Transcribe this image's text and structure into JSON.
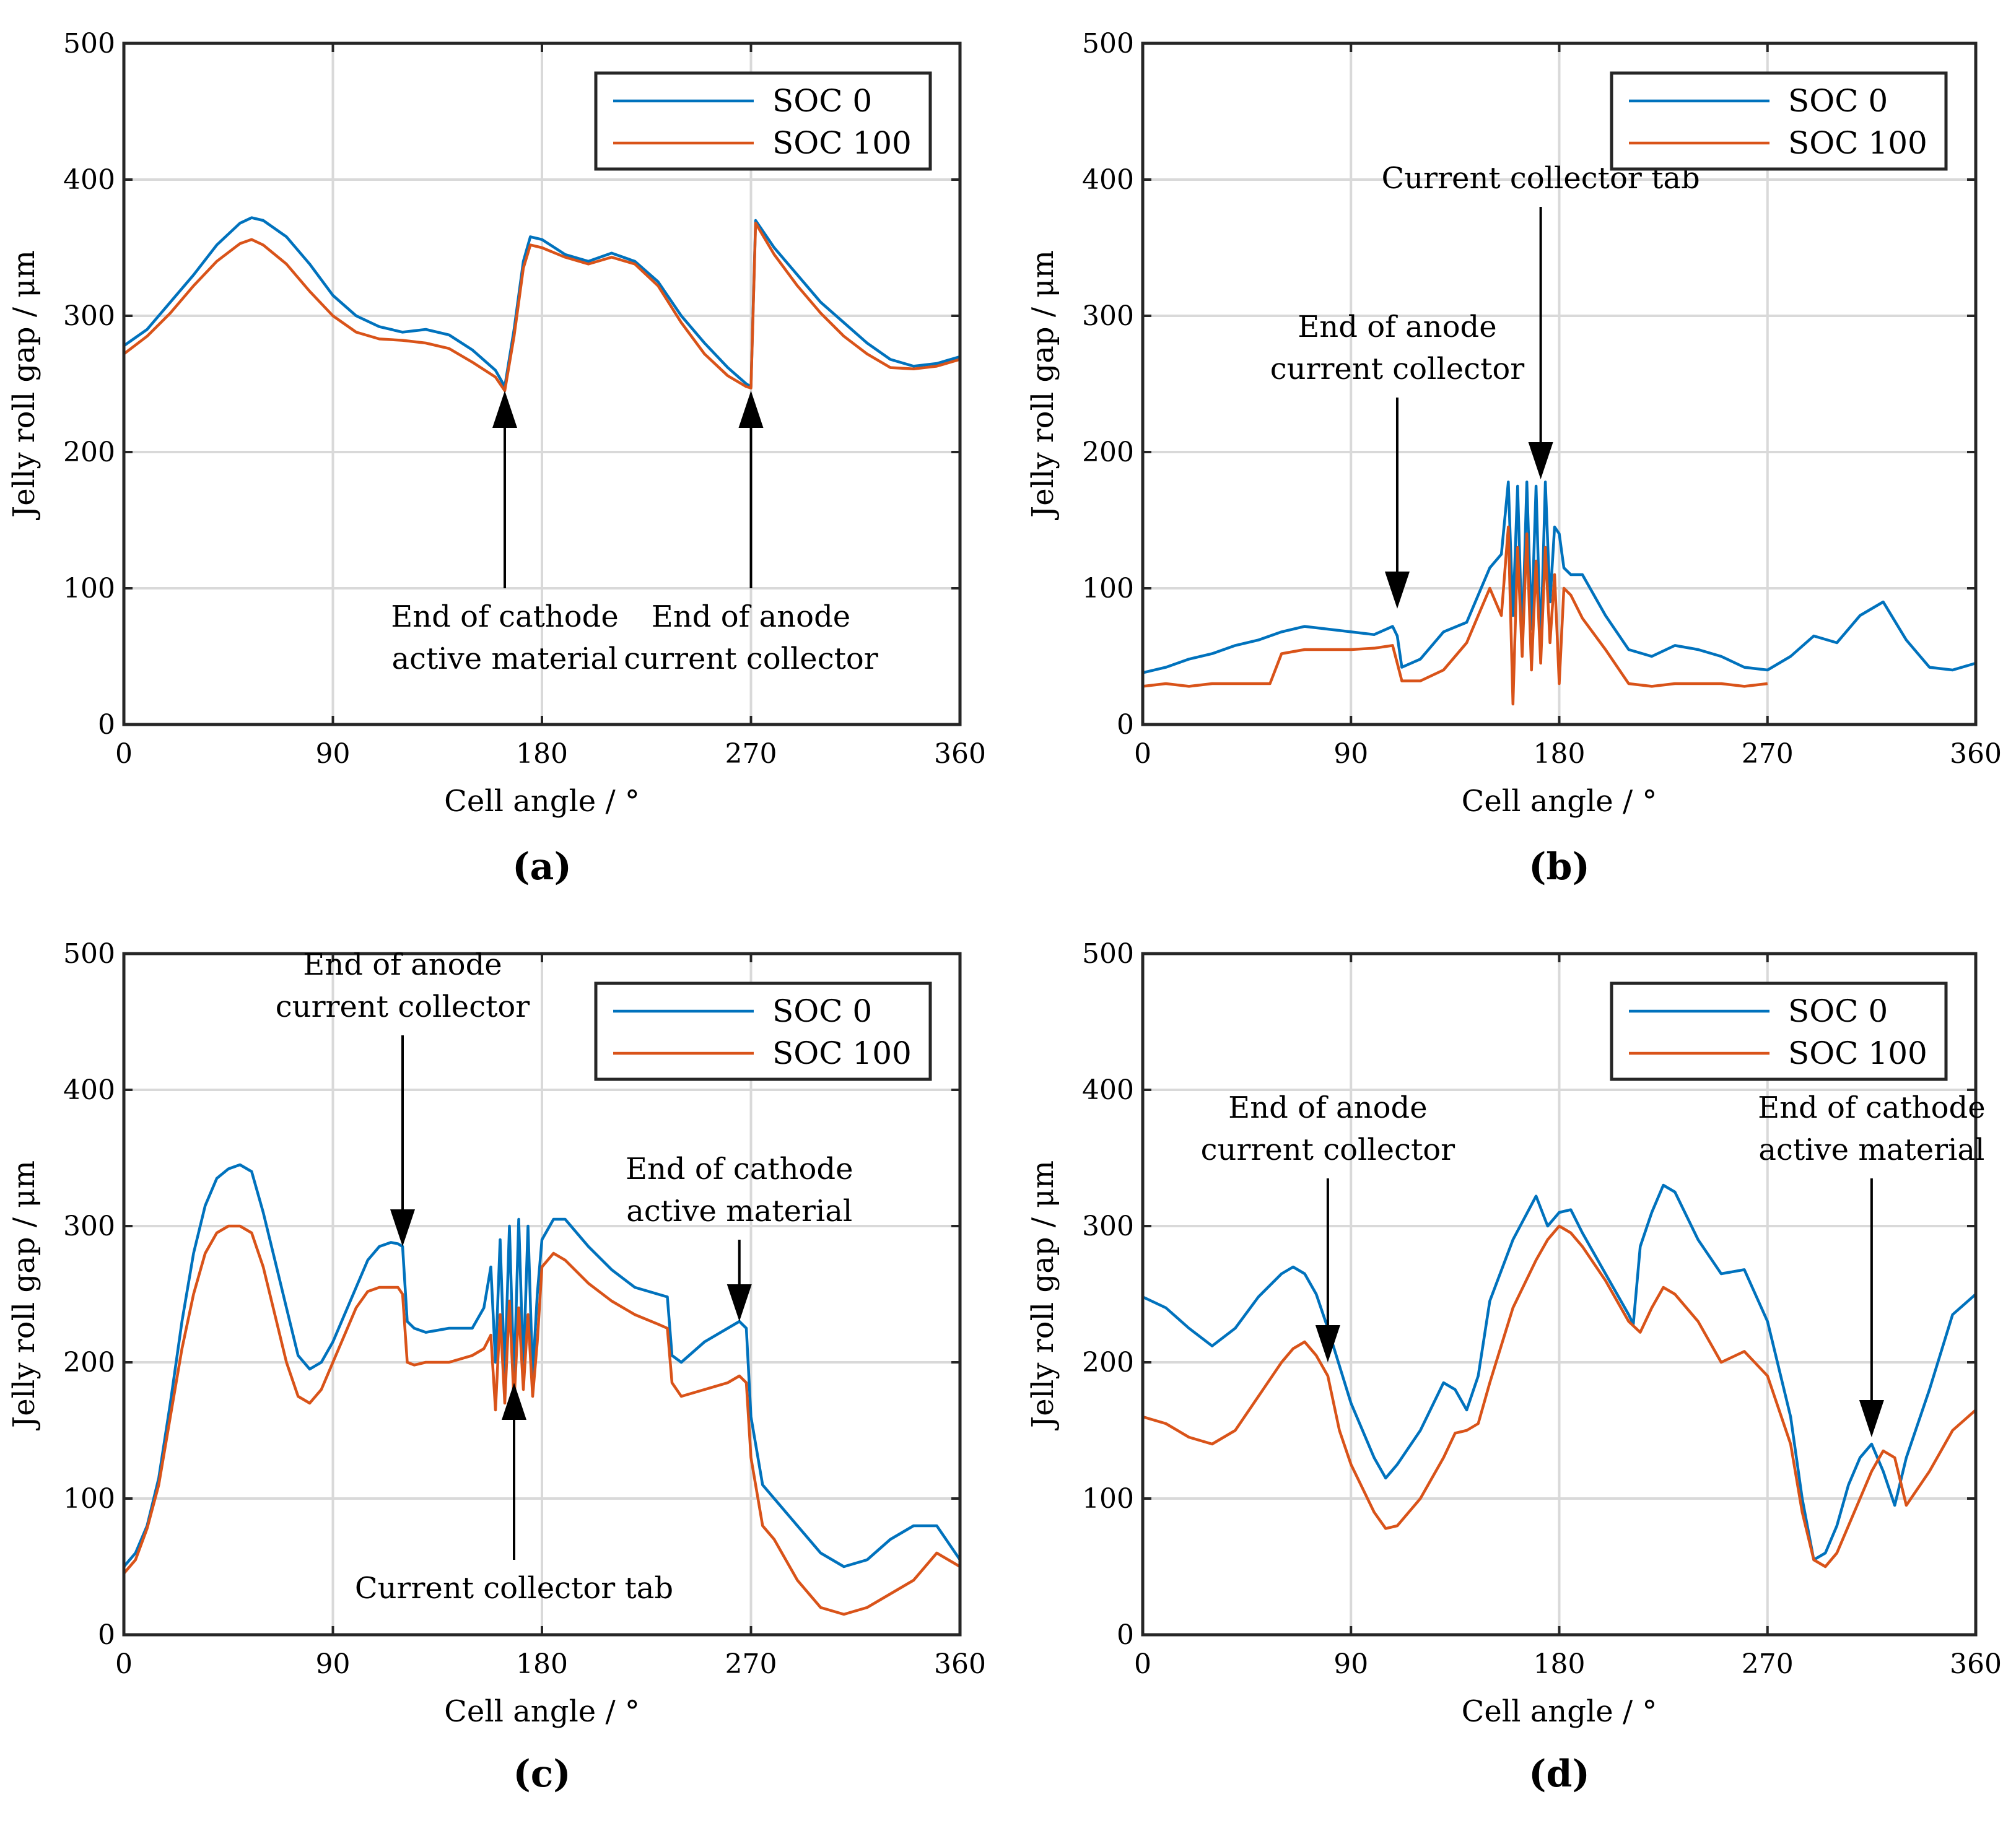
{
  "legend": {
    "series": [
      "SOC 0",
      "SOC 100"
    ]
  },
  "colors": {
    "soc0": "#0072BD",
    "soc100": "#D95319",
    "grid": "#d9d9d9",
    "axis": "#262626"
  },
  "chart_data": [
    {
      "type": "line",
      "panel_label": "(a)",
      "xlabel": "Cell angle / °",
      "ylabel": "Jelly roll gap / μm",
      "xlim": [
        0,
        360
      ],
      "ylim": [
        0,
        500
      ],
      "xticks": [
        0,
        90,
        180,
        270,
        360
      ],
      "yticks": [
        0,
        100,
        200,
        300,
        400,
        500
      ],
      "grid": true,
      "legend_position": "top-right",
      "series": [
        {
          "name": "SOC 0",
          "color": "#0072BD",
          "x": [
            0,
            10,
            20,
            30,
            40,
            50,
            55,
            60,
            70,
            80,
            90,
            100,
            110,
            120,
            130,
            140,
            150,
            160,
            164,
            168,
            172,
            175,
            180,
            190,
            200,
            210,
            220,
            230,
            240,
            250,
            260,
            268,
            270,
            272,
            280,
            290,
            300,
            310,
            320,
            330,
            340,
            350,
            360
          ],
          "y": [
            278,
            290,
            310,
            330,
            352,
            368,
            372,
            370,
            358,
            338,
            315,
            300,
            292,
            288,
            290,
            286,
            275,
            260,
            248,
            290,
            340,
            358,
            356,
            345,
            340,
            346,
            340,
            325,
            300,
            280,
            262,
            250,
            248,
            370,
            350,
            330,
            310,
            295,
            280,
            268,
            263,
            265,
            270
          ]
        },
        {
          "name": "SOC 100",
          "color": "#D95319",
          "x": [
            0,
            10,
            20,
            30,
            40,
            50,
            55,
            60,
            70,
            80,
            90,
            100,
            110,
            120,
            130,
            140,
            150,
            160,
            164,
            168,
            172,
            175,
            180,
            190,
            200,
            210,
            220,
            230,
            240,
            250,
            260,
            268,
            270,
            272,
            280,
            290,
            300,
            310,
            320,
            330,
            340,
            350,
            360
          ],
          "y": [
            272,
            285,
            302,
            322,
            340,
            353,
            356,
            352,
            338,
            318,
            300,
            288,
            283,
            282,
            280,
            276,
            266,
            255,
            245,
            285,
            335,
            352,
            350,
            343,
            338,
            343,
            338,
            322,
            295,
            272,
            256,
            248,
            247,
            368,
            345,
            322,
            302,
            285,
            272,
            262,
            261,
            263,
            268
          ]
        }
      ],
      "annotations": [
        {
          "lines": [
            "End of cathode",
            "active material"
          ],
          "x": 164,
          "y_tail": 100,
          "y_head": 245
        },
        {
          "lines": [
            "End of anode",
            "current collector"
          ],
          "x": 270,
          "y_tail": 100,
          "y_head": 245
        }
      ]
    },
    {
      "type": "line",
      "panel_label": "(b)",
      "xlabel": "Cell angle / °",
      "ylabel": "Jelly roll gap / μm",
      "xlim": [
        0,
        360
      ],
      "ylim": [
        0,
        500
      ],
      "xticks": [
        0,
        90,
        180,
        270,
        360
      ],
      "yticks": [
        0,
        100,
        200,
        300,
        400,
        500
      ],
      "grid": true,
      "legend_position": "top-right",
      "series": [
        {
          "name": "SOC 0",
          "color": "#0072BD",
          "x": [
            0,
            10,
            20,
            30,
            40,
            50,
            60,
            70,
            80,
            90,
            100,
            108,
            110,
            112,
            120,
            130,
            140,
            145,
            150,
            155,
            158,
            160,
            162,
            164,
            166,
            168,
            170,
            172,
            174,
            176,
            178,
            180,
            182,
            185,
            190,
            200,
            210,
            220,
            230,
            240,
            250,
            260,
            270,
            280,
            290,
            300,
            310,
            320,
            330,
            340,
            350,
            360
          ],
          "y": [
            38,
            42,
            48,
            52,
            58,
            62,
            68,
            72,
            70,
            68,
            66,
            72,
            65,
            42,
            48,
            68,
            75,
            95,
            115,
            125,
            178,
            80,
            175,
            60,
            178,
            70,
            175,
            55,
            178,
            90,
            145,
            140,
            115,
            110,
            110,
            80,
            55,
            50,
            58,
            55,
            50,
            42,
            40,
            50,
            65,
            60,
            80,
            90,
            62,
            42,
            40,
            45
          ]
        },
        {
          "name": "SOC 100",
          "color": "#D95319",
          "x": [
            0,
            10,
            20,
            30,
            40,
            50,
            55,
            60,
            70,
            80,
            90,
            100,
            108,
            110,
            112,
            120,
            130,
            140,
            145,
            150,
            155,
            158,
            160,
            162,
            164,
            166,
            168,
            170,
            172,
            174,
            176,
            178,
            180,
            182,
            185,
            190,
            200,
            210,
            220,
            230,
            240,
            250,
            260,
            270
          ],
          "y": [
            28,
            30,
            28,
            30,
            30,
            30,
            30,
            52,
            55,
            55,
            55,
            56,
            58,
            45,
            32,
            32,
            40,
            60,
            80,
            100,
            80,
            145,
            15,
            130,
            50,
            140,
            40,
            120,
            45,
            130,
            60,
            110,
            30,
            100,
            95,
            78,
            55,
            30,
            28,
            30,
            30,
            30,
            28,
            30
          ]
        }
      ],
      "annotations": [
        {
          "lines": [
            "End of anode",
            "current collector"
          ],
          "x": 110,
          "y_tail": 240,
          "y_head": 85
        },
        {
          "lines": [
            "Current collector tab"
          ],
          "x": 172,
          "y_tail": 380,
          "y_head": 180
        }
      ]
    },
    {
      "type": "line",
      "panel_label": "(c)",
      "xlabel": "Cell angle / °",
      "ylabel": "Jelly roll gap / μm",
      "xlim": [
        0,
        360
      ],
      "ylim": [
        0,
        500
      ],
      "xticks": [
        0,
        90,
        180,
        270,
        360
      ],
      "yticks": [
        0,
        100,
        200,
        300,
        400,
        500
      ],
      "grid": true,
      "legend_position": "top-right",
      "series": [
        {
          "name": "SOC 0",
          "color": "#0072BD",
          "x": [
            0,
            5,
            10,
            15,
            20,
            25,
            30,
            35,
            40,
            45,
            50,
            55,
            60,
            65,
            70,
            75,
            80,
            85,
            90,
            100,
            105,
            110,
            115,
            118,
            120,
            122,
            125,
            130,
            140,
            150,
            155,
            158,
            160,
            162,
            164,
            166,
            168,
            170,
            172,
            174,
            176,
            178,
            180,
            185,
            190,
            200,
            210,
            220,
            230,
            234,
            236,
            240,
            250,
            260,
            265,
            268,
            270,
            275,
            280,
            290,
            300,
            310,
            320,
            330,
            340,
            350,
            360
          ],
          "y": [
            50,
            60,
            80,
            115,
            170,
            230,
            280,
            315,
            335,
            342,
            345,
            340,
            310,
            275,
            240,
            205,
            195,
            200,
            215,
            255,
            275,
            285,
            288,
            287,
            285,
            230,
            225,
            222,
            225,
            225,
            240,
            270,
            200,
            290,
            190,
            300,
            185,
            305,
            195,
            300,
            190,
            250,
            290,
            305,
            305,
            285,
            268,
            255,
            250,
            248,
            205,
            200,
            215,
            225,
            230,
            225,
            160,
            110,
            100,
            80,
            60,
            50,
            55,
            70,
            80,
            80,
            55
          ]
        },
        {
          "name": "SOC 100",
          "color": "#D95319",
          "x": [
            0,
            5,
            10,
            15,
            20,
            25,
            30,
            35,
            40,
            45,
            50,
            55,
            60,
            65,
            70,
            75,
            80,
            85,
            90,
            100,
            105,
            110,
            115,
            118,
            120,
            122,
            125,
            130,
            140,
            150,
            155,
            158,
            160,
            162,
            164,
            166,
            168,
            170,
            172,
            174,
            176,
            178,
            180,
            185,
            190,
            200,
            210,
            220,
            230,
            234,
            236,
            240,
            250,
            260,
            265,
            268,
            270,
            275,
            280,
            290,
            300,
            310,
            320,
            330,
            340,
            350,
            360
          ],
          "y": [
            45,
            55,
            78,
            110,
            160,
            210,
            250,
            280,
            295,
            300,
            300,
            295,
            270,
            235,
            200,
            175,
            170,
            180,
            200,
            240,
            252,
            255,
            255,
            255,
            250,
            200,
            198,
            200,
            200,
            205,
            210,
            220,
            165,
            235,
            170,
            245,
            170,
            240,
            180,
            235,
            175,
            215,
            270,
            280,
            275,
            258,
            245,
            235,
            228,
            225,
            185,
            175,
            180,
            185,
            190,
            185,
            130,
            80,
            70,
            40,
            20,
            15,
            20,
            30,
            40,
            60,
            50
          ]
        }
      ],
      "annotations": [
        {
          "lines": [
            "End of anode",
            "current collector"
          ],
          "x": 120,
          "y_tail": 440,
          "y_head": 285
        },
        {
          "lines": [
            "Current collector tab"
          ],
          "x": 168,
          "y_tail": 55,
          "y_head": 185
        },
        {
          "lines": [
            "End of cathode",
            "active material"
          ],
          "x": 265,
          "y_tail": 290,
          "y_head": 230
        }
      ]
    },
    {
      "type": "line",
      "panel_label": "(d)",
      "xlabel": "Cell angle / °",
      "ylabel": "Jelly roll gap / μm",
      "xlim": [
        0,
        360
      ],
      "ylim": [
        0,
        500
      ],
      "xticks": [
        0,
        90,
        180,
        270,
        360
      ],
      "yticks": [
        0,
        100,
        200,
        300,
        400,
        500
      ],
      "grid": true,
      "legend_position": "top-right",
      "series": [
        {
          "name": "SOC 0",
          "color": "#0072BD",
          "x": [
            0,
            10,
            20,
            30,
            40,
            50,
            60,
            65,
            70,
            75,
            80,
            90,
            100,
            105,
            110,
            120,
            130,
            135,
            140,
            145,
            150,
            160,
            170,
            175,
            180,
            185,
            190,
            200,
            210,
            212,
            215,
            220,
            225,
            230,
            240,
            250,
            260,
            270,
            280,
            285,
            290,
            295,
            300,
            305,
            310,
            315,
            320,
            325,
            330,
            340,
            350,
            360
          ],
          "y": [
            248,
            240,
            225,
            212,
            225,
            248,
            265,
            270,
            265,
            250,
            225,
            170,
            130,
            115,
            125,
            150,
            185,
            180,
            165,
            190,
            245,
            290,
            322,
            300,
            310,
            312,
            295,
            265,
            235,
            228,
            285,
            310,
            330,
            325,
            290,
            265,
            268,
            230,
            160,
            100,
            55,
            60,
            80,
            110,
            130,
            140,
            120,
            95,
            130,
            180,
            235,
            250
          ]
        },
        {
          "name": "SOC 100",
          "color": "#D95319",
          "x": [
            0,
            10,
            20,
            30,
            40,
            50,
            60,
            65,
            70,
            75,
            80,
            85,
            90,
            100,
            105,
            110,
            120,
            130,
            135,
            140,
            145,
            150,
            160,
            170,
            175,
            180,
            185,
            190,
            200,
            210,
            215,
            220,
            225,
            230,
            240,
            250,
            260,
            270,
            280,
            285,
            290,
            295,
            300,
            305,
            310,
            315,
            320,
            325,
            330,
            340,
            350,
            360
          ],
          "y": [
            160,
            155,
            145,
            140,
            150,
            175,
            200,
            210,
            215,
            205,
            190,
            150,
            125,
            90,
            78,
            80,
            100,
            130,
            148,
            150,
            155,
            185,
            240,
            275,
            290,
            300,
            295,
            285,
            260,
            230,
            222,
            240,
            255,
            250,
            230,
            200,
            208,
            190,
            140,
            90,
            55,
            50,
            60,
            80,
            100,
            120,
            135,
            130,
            95,
            120,
            150,
            165
          ]
        }
      ],
      "annotations": [
        {
          "lines": [
            "End of anode",
            "current collector"
          ],
          "x": 80,
          "y_tail": 335,
          "y_head": 200
        },
        {
          "lines": [
            "End of cathode",
            "active material"
          ],
          "x": 315,
          "y_tail": 335,
          "y_head": 145
        }
      ]
    }
  ]
}
